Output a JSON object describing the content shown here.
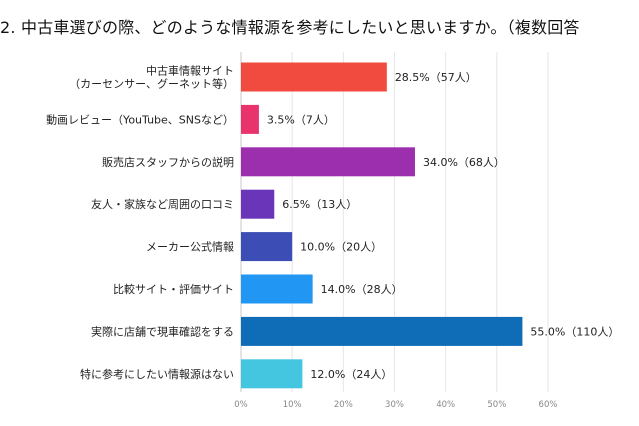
{
  "chart_data": {
    "type": "bar",
    "orientation": "horizontal",
    "title": "2. 中古車選びの際、どのような情報源を参考にしたいと思いますか。（複数回答",
    "categories": [
      [
        "中古車情報サイト",
        "（カーセンサー、グーネット等）"
      ],
      [
        "動画レビュー（YouTube、SNSなど）"
      ],
      [
        "販売店スタッフからの説明"
      ],
      [
        "友人・家族など周囲の口コミ"
      ],
      [
        "メーカー公式情報"
      ],
      [
        "比較サイト・評価サイト"
      ],
      [
        "実際に店舗で現車確認をする"
      ],
      [
        "特に参考にしたい情報源はない"
      ]
    ],
    "values": [
      28.5,
      3.5,
      34.0,
      6.5,
      10.0,
      14.0,
      55.0,
      12.0
    ],
    "value_labels": [
      "28.5%（57人）",
      "3.5%（7人）",
      "34.0%（68人）",
      "6.5%（13人）",
      "10.0%（20人）",
      "14.0%（28人）",
      "55.0%（110人）",
      "12.0%（24人）"
    ],
    "colors": [
      "#f04b3e",
      "#e8336d",
      "#9b2fae",
      "#6a35b8",
      "#3c4db5",
      "#2196f3",
      "#0f6cb6",
      "#45c6e0"
    ],
    "xlim": [
      0,
      60
    ],
    "xticks": [
      0,
      10,
      20,
      30,
      40,
      50,
      60
    ],
    "xtick_labels": [
      "0%",
      "10%",
      "20%",
      "30%",
      "40%",
      "50%",
      "60%"
    ],
    "grid": true
  }
}
